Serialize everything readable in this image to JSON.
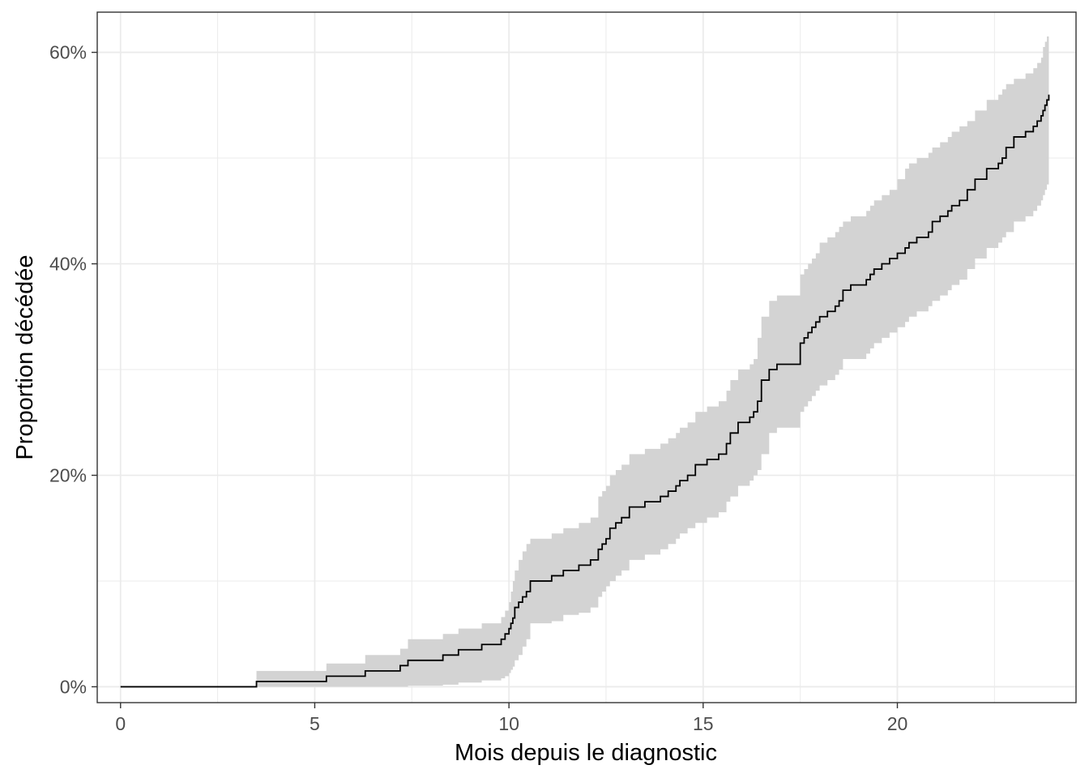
{
  "chart_data": {
    "type": "line",
    "subtype": "cumulative-incidence-step",
    "title": "",
    "xlabel": "Mois depuis le diagnostic",
    "ylabel": "Proportion décédée",
    "xlim": [
      -0.6,
      24.6
    ],
    "ylim": [
      -0.015,
      0.638
    ],
    "x_ticks": [
      0,
      5,
      10,
      15,
      20
    ],
    "y_ticks": [
      0,
      0.2,
      0.4,
      0.6
    ],
    "y_tick_labels": [
      "0%",
      "20%",
      "40%",
      "60%"
    ],
    "x_minor_ticks": [
      2.5,
      7.5,
      12.5,
      17.5,
      22.5
    ],
    "y_minor_ticks": [
      0.1,
      0.3,
      0.5
    ],
    "grid": true,
    "legend": "none",
    "colors": {
      "line": "#000000",
      "band": "#d3d3d3",
      "grid": "#ebebeb",
      "panel_border": "#333333",
      "tick_text": "#4d4d4d"
    },
    "series": [
      {
        "x": [
          0,
          3.5,
          5.3,
          6.3,
          7.2,
          7.4,
          8.3,
          8.7,
          9.3,
          9.8,
          9.9,
          10.0,
          10.05,
          10.1,
          10.15,
          10.25,
          10.35,
          10.45,
          10.55,
          11.1,
          11.4,
          11.8,
          12.1,
          12.3,
          12.4,
          12.5,
          12.6,
          12.75,
          12.9,
          13.1,
          13.5,
          13.9,
          14.1,
          14.3,
          14.4,
          14.6,
          14.8,
          15.1,
          15.4,
          15.6,
          15.7,
          15.9,
          16.2,
          16.3,
          16.4,
          16.5,
          16.7,
          16.9,
          17.5,
          17.6,
          17.7,
          17.8,
          17.9,
          18.0,
          18.2,
          18.4,
          18.5,
          18.6,
          18.8,
          19.2,
          19.3,
          19.4,
          19.6,
          19.8,
          20.0,
          20.2,
          20.3,
          20.5,
          20.8,
          20.9,
          21.1,
          21.3,
          21.4,
          21.6,
          21.8,
          22.0,
          22.3,
          22.6,
          22.7,
          22.8,
          23.0,
          23.3,
          23.5,
          23.6,
          23.7,
          23.75,
          23.8,
          23.85,
          23.9
        ],
        "y": [
          0,
          0.005,
          0.01,
          0.015,
          0.02,
          0.025,
          0.03,
          0.035,
          0.04,
          0.045,
          0.05,
          0.055,
          0.06,
          0.065,
          0.075,
          0.08,
          0.085,
          0.09,
          0.1,
          0.105,
          0.11,
          0.115,
          0.12,
          0.13,
          0.135,
          0.14,
          0.15,
          0.155,
          0.16,
          0.17,
          0.175,
          0.18,
          0.185,
          0.19,
          0.195,
          0.2,
          0.21,
          0.215,
          0.22,
          0.23,
          0.24,
          0.25,
          0.255,
          0.26,
          0.27,
          0.29,
          0.3,
          0.305,
          0.325,
          0.33,
          0.335,
          0.34,
          0.345,
          0.35,
          0.355,
          0.36,
          0.365,
          0.375,
          0.38,
          0.385,
          0.39,
          0.395,
          0.4,
          0.405,
          0.41,
          0.415,
          0.42,
          0.425,
          0.43,
          0.44,
          0.445,
          0.45,
          0.455,
          0.46,
          0.47,
          0.48,
          0.49,
          0.495,
          0.5,
          0.51,
          0.52,
          0.525,
          0.53,
          0.535,
          0.54,
          0.545,
          0.55,
          0.555,
          0.56
        ],
        "lower": [
          0,
          0,
          0,
          0,
          0,
          0.001,
          0.002,
          0.004,
          0.006,
          0.008,
          0.01,
          0.013,
          0.016,
          0.019,
          0.025,
          0.03,
          0.038,
          0.045,
          0.06,
          0.062,
          0.068,
          0.07,
          0.075,
          0.085,
          0.09,
          0.095,
          0.1,
          0.105,
          0.11,
          0.12,
          0.125,
          0.13,
          0.135,
          0.14,
          0.145,
          0.15,
          0.155,
          0.16,
          0.165,
          0.175,
          0.18,
          0.19,
          0.195,
          0.2,
          0.205,
          0.22,
          0.24,
          0.245,
          0.26,
          0.265,
          0.27,
          0.275,
          0.28,
          0.285,
          0.29,
          0.295,
          0.3,
          0.31,
          0.31,
          0.315,
          0.32,
          0.325,
          0.33,
          0.335,
          0.34,
          0.345,
          0.35,
          0.355,
          0.36,
          0.365,
          0.37,
          0.375,
          0.38,
          0.385,
          0.395,
          0.405,
          0.415,
          0.42,
          0.425,
          0.43,
          0.44,
          0.445,
          0.45,
          0.455,
          0.46,
          0.465,
          0.47,
          0.475,
          0.485
        ],
        "upper": [
          0,
          0.015,
          0.022,
          0.03,
          0.036,
          0.045,
          0.05,
          0.055,
          0.06,
          0.066,
          0.072,
          0.08,
          0.09,
          0.1,
          0.11,
          0.12,
          0.128,
          0.135,
          0.14,
          0.145,
          0.15,
          0.155,
          0.16,
          0.18,
          0.185,
          0.19,
          0.2,
          0.205,
          0.21,
          0.22,
          0.225,
          0.23,
          0.235,
          0.24,
          0.245,
          0.25,
          0.26,
          0.265,
          0.27,
          0.28,
          0.29,
          0.3,
          0.305,
          0.31,
          0.33,
          0.35,
          0.365,
          0.37,
          0.39,
          0.395,
          0.4,
          0.405,
          0.41,
          0.42,
          0.425,
          0.43,
          0.435,
          0.44,
          0.445,
          0.45,
          0.455,
          0.46,
          0.465,
          0.47,
          0.48,
          0.49,
          0.495,
          0.5,
          0.505,
          0.51,
          0.515,
          0.52,
          0.525,
          0.53,
          0.535,
          0.545,
          0.555,
          0.56,
          0.565,
          0.57,
          0.575,
          0.58,
          0.585,
          0.59,
          0.595,
          0.605,
          0.61,
          0.615,
          0.625
        ]
      }
    ]
  }
}
